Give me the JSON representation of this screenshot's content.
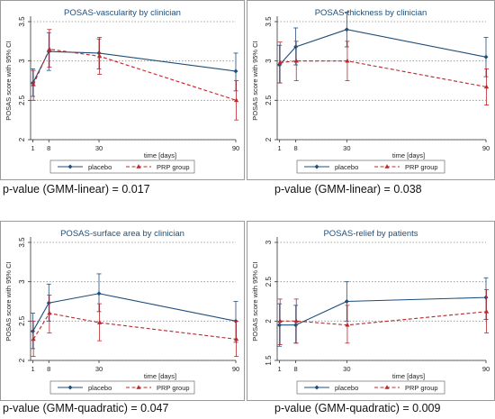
{
  "chart_data": [
    {
      "type": "line",
      "title": "POSAS-vascularity by clinician",
      "xlabel": "time [days]",
      "ylabel": "POSAS score with 95% CI",
      "x": [
        1,
        8,
        30,
        90
      ],
      "xlim": [
        0,
        90
      ],
      "ylim": [
        2,
        3.5
      ],
      "yticks": [
        "2",
        "2.5",
        "3",
        "3.5"
      ],
      "grid": true,
      "legend_position": "bottom",
      "series": [
        {
          "name": "placebo",
          "values": [
            2.72,
            3.12,
            3.1,
            2.87
          ],
          "ci_low": [
            2.55,
            2.88,
            2.9,
            2.62
          ],
          "ci_high": [
            2.9,
            3.36,
            3.28,
            3.1
          ]
        },
        {
          "name": "PRP group",
          "values": [
            2.7,
            3.15,
            3.06,
            2.5
          ],
          "ci_low": [
            2.5,
            2.92,
            2.83,
            2.25
          ],
          "ci_high": [
            2.88,
            3.4,
            3.3,
            2.75
          ]
        }
      ],
      "pvalue_label": "p-value (GMM-linear) = 0.017"
    },
    {
      "type": "line",
      "title": "POSAS-thickness by clinician",
      "xlabel": "time [days]",
      "ylabel": "POSAS score with 95% CI",
      "x": [
        1,
        8,
        30,
        90
      ],
      "xlim": [
        0,
        90
      ],
      "ylim": [
        2,
        3.5
      ],
      "yticks": [
        "2",
        "2.5",
        "3",
        "3.5"
      ],
      "grid": true,
      "legend_position": "bottom",
      "series": [
        {
          "name": "placebo",
          "values": [
            2.95,
            3.18,
            3.4,
            3.05
          ],
          "ci_low": [
            2.72,
            2.95,
            3.18,
            2.8
          ],
          "ci_high": [
            3.2,
            3.42,
            3.62,
            3.3
          ]
        },
        {
          "name": "PRP group",
          "values": [
            2.98,
            3.0,
            3.0,
            2.67
          ],
          "ci_low": [
            2.72,
            2.75,
            2.75,
            2.44
          ],
          "ci_high": [
            3.24,
            3.25,
            3.25,
            2.9
          ]
        }
      ],
      "pvalue_label": "p-value (GMM-linear) = 0.038"
    },
    {
      "type": "line",
      "title": "POSAS-surface area by clinician",
      "xlabel": "time [days]",
      "ylabel": "POSAS score with 95% CI",
      "x": [
        1,
        8,
        30,
        90
      ],
      "xlim": [
        0,
        90
      ],
      "ylim": [
        2,
        3.5
      ],
      "yticks": [
        "2",
        "2.5",
        "3",
        "3.5"
      ],
      "grid": true,
      "legend_position": "bottom",
      "series": [
        {
          "name": "placebo",
          "values": [
            2.37,
            2.73,
            2.85,
            2.5
          ],
          "ci_low": [
            2.15,
            2.5,
            2.62,
            2.23
          ],
          "ci_high": [
            2.6,
            2.97,
            3.1,
            2.75
          ]
        },
        {
          "name": "PRP group",
          "values": [
            2.27,
            2.6,
            2.48,
            2.27
          ],
          "ci_low": [
            2.05,
            2.35,
            2.25,
            2.05
          ],
          "ci_high": [
            2.5,
            2.83,
            2.72,
            2.5
          ]
        }
      ],
      "pvalue_label": "p-value (GMM-quadratic) = 0.047"
    },
    {
      "type": "line",
      "title": "POSAS-relief by patients",
      "xlabel": "time [days]",
      "ylabel": "POSAS score with 95% CI",
      "x": [
        1,
        8,
        30,
        90
      ],
      "xlim": [
        0,
        90
      ],
      "ylim": [
        1.5,
        3
      ],
      "yticks": [
        "1.5",
        "2",
        "2.5",
        "3"
      ],
      "grid": true,
      "legend_position": "bottom",
      "series": [
        {
          "name": "placebo",
          "values": [
            1.95,
            1.95,
            2.25,
            2.3
          ],
          "ci_low": [
            1.68,
            1.72,
            2.0,
            2.02
          ],
          "ci_high": [
            2.22,
            2.2,
            2.5,
            2.55
          ]
        },
        {
          "name": "PRP group",
          "values": [
            2.0,
            2.0,
            1.95,
            2.12
          ],
          "ci_low": [
            1.7,
            1.72,
            1.72,
            1.85
          ],
          "ci_high": [
            2.28,
            2.28,
            2.2,
            2.4
          ]
        }
      ],
      "pvalue_label": "p-value (GMM-quadratic) = 0.009"
    }
  ]
}
